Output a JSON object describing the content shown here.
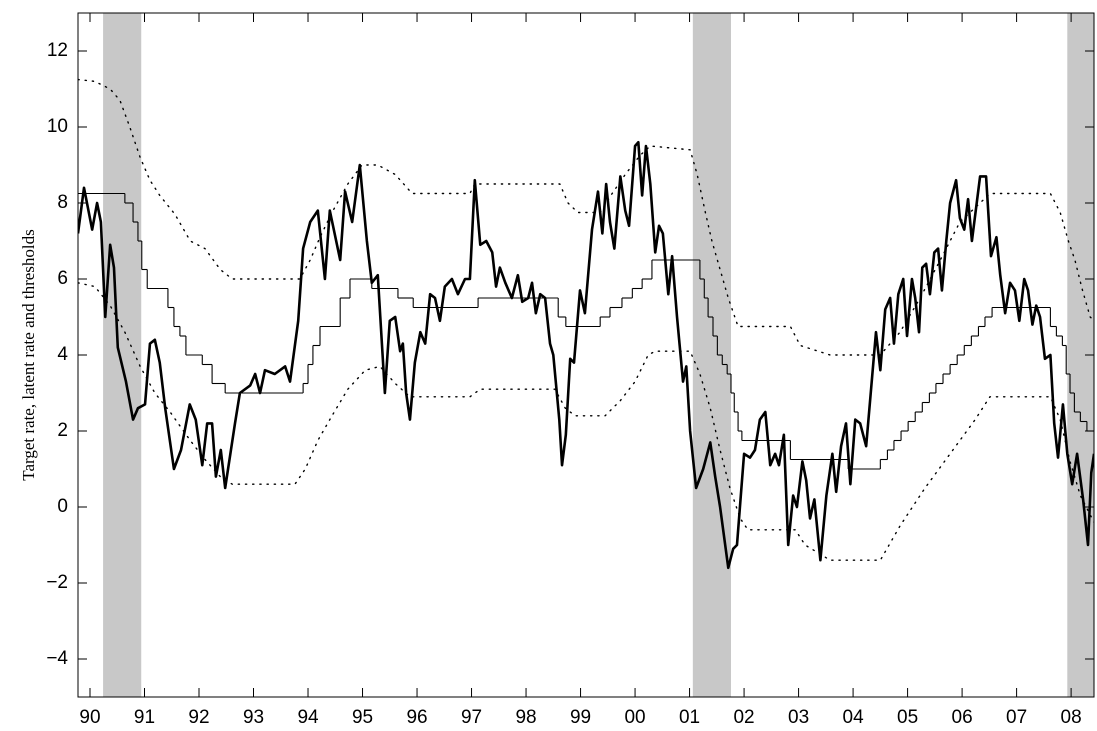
{
  "chart_data": {
    "type": "line",
    "ylabel": "Target rate, latent rate and thresholds",
    "xlim": [
      1989.78,
      2008.42
    ],
    "ylim": [
      -5,
      13
    ],
    "xticks": [
      {
        "value": 1990,
        "label": "90"
      },
      {
        "value": 1991,
        "label": "91"
      },
      {
        "value": 1992,
        "label": "92"
      },
      {
        "value": 1993,
        "label": "93"
      },
      {
        "value": 1994,
        "label": "94"
      },
      {
        "value": 1995,
        "label": "95"
      },
      {
        "value": 1996,
        "label": "96"
      },
      {
        "value": 1997,
        "label": "97"
      },
      {
        "value": 1998,
        "label": "98"
      },
      {
        "value": 1999,
        "label": "99"
      },
      {
        "value": 2000,
        "label": "00"
      },
      {
        "value": 2001,
        "label": "01"
      },
      {
        "value": 2002,
        "label": "02"
      },
      {
        "value": 2003,
        "label": "03"
      },
      {
        "value": 2004,
        "label": "04"
      },
      {
        "value": 2005,
        "label": "05"
      },
      {
        "value": 2006,
        "label": "06"
      },
      {
        "value": 2007,
        "label": "07"
      },
      {
        "value": 2008,
        "label": "08"
      }
    ],
    "yticks": [
      {
        "value": -4,
        "label": "−4"
      },
      {
        "value": -2,
        "label": "−2"
      },
      0,
      2,
      4,
      6,
      8,
      10,
      12
    ],
    "grid": false,
    "shaded_periods": [
      [
        1990.24,
        1990.94
      ],
      [
        2001.06,
        2001.76
      ],
      [
        2007.93,
        2008.42
      ]
    ],
    "shade_color": "#c8c8c8",
    "series": [
      {
        "color": "#000000",
        "line_width": 2.6,
        "dash": "none",
        "step": false,
        "x": [
          1989.78,
          1989.89,
          1990.04,
          1990.13,
          1990.2,
          1990.28,
          1990.37,
          1990.44,
          1990.51,
          1990.66,
          1990.79,
          1990.88,
          1991.01,
          1991.1,
          1991.19,
          1991.28,
          1991.38,
          1991.54,
          1991.67,
          1991.83,
          1991.94,
          1992.06,
          1992.15,
          1992.24,
          1992.31,
          1992.4,
          1992.48,
          1992.66,
          1992.75,
          1992.94,
          1993.03,
          1993.12,
          1993.21,
          1993.39,
          1993.58,
          1993.67,
          1993.82,
          1993.91,
          1994.04,
          1994.18,
          1994.31,
          1994.4,
          1994.59,
          1994.68,
          1994.81,
          1994.95,
          1995.08,
          1995.17,
          1995.28,
          1995.41,
          1995.5,
          1995.6,
          1995.69,
          1995.74,
          1995.8,
          1995.87,
          1995.96,
          1996.06,
          1996.15,
          1996.24,
          1996.33,
          1996.42,
          1996.51,
          1996.64,
          1996.75,
          1996.88,
          1996.97,
          1997.06,
          1997.16,
          1997.27,
          1997.38,
          1997.45,
          1997.52,
          1997.62,
          1997.74,
          1997.85,
          1997.93,
          1998.04,
          1998.11,
          1998.18,
          1998.26,
          1998.35,
          1998.44,
          1998.5,
          1998.61,
          1998.66,
          1998.73,
          1998.81,
          1998.88,
          1998.99,
          1999.08,
          1999.21,
          1999.32,
          1999.4,
          1999.47,
          1999.54,
          1999.62,
          1999.73,
          1999.82,
          1999.89,
          2000.0,
          2000.06,
          2000.13,
          2000.2,
          2000.28,
          2000.37,
          2000.44,
          2000.51,
          2000.61,
          2000.68,
          2000.77,
          2000.88,
          2000.94,
          2001.01,
          2001.12,
          2001.25,
          2001.38,
          2001.47,
          2001.56,
          2001.71,
          2001.8,
          2001.87,
          2002.0,
          2002.11,
          2002.2,
          2002.29,
          2002.39,
          2002.48,
          2002.57,
          2002.64,
          2002.73,
          2002.81,
          2002.9,
          2002.97,
          2003.07,
          2003.14,
          2003.21,
          2003.29,
          2003.4,
          2003.51,
          2003.62,
          2003.69,
          2003.78,
          2003.87,
          2003.95,
          2004.04,
          2004.13,
          2004.24,
          2004.33,
          2004.42,
          2004.5,
          2004.59,
          2004.68,
          2004.75,
          2004.83,
          2004.92,
          2004.99,
          2005.08,
          2005.14,
          2005.21,
          2005.27,
          2005.34,
          2005.41,
          2005.49,
          2005.56,
          2005.63,
          2005.71,
          2005.78,
          2005.89,
          2005.96,
          2006.04,
          2006.11,
          2006.18,
          2006.33,
          2006.44,
          2006.53,
          2006.63,
          2006.7,
          2006.79,
          2006.88,
          2006.97,
          2007.05,
          2007.14,
          2007.21,
          2007.29,
          2007.36,
          2007.43,
          2007.52,
          2007.62,
          2007.69,
          2007.76,
          2007.85,
          2007.93,
          2008.02,
          2008.11,
          2008.22,
          2008.31,
          2008.37,
          2008.42
        ],
        "values": [
          7.2,
          8.4,
          7.3,
          8.0,
          7.5,
          5.0,
          6.9,
          6.3,
          4.2,
          3.3,
          2.3,
          2.6,
          2.7,
          4.3,
          4.4,
          3.8,
          2.6,
          1.0,
          1.5,
          2.7,
          2.3,
          1.1,
          2.2,
          2.2,
          0.8,
          1.5,
          0.5,
          2.2,
          3.0,
          3.2,
          3.5,
          3.0,
          3.6,
          3.5,
          3.7,
          3.3,
          4.9,
          6.8,
          7.5,
          7.8,
          6.0,
          7.8,
          6.5,
          8.3,
          7.5,
          9.0,
          7.0,
          5.9,
          6.1,
          3.0,
          4.9,
          5.0,
          4.1,
          4.3,
          3.0,
          2.3,
          3.8,
          4.6,
          4.3,
          5.6,
          5.5,
          4.9,
          5.8,
          6.0,
          5.6,
          6.0,
          6.0,
          8.6,
          6.9,
          7.0,
          6.7,
          5.8,
          6.3,
          5.9,
          5.5,
          6.1,
          5.4,
          5.5,
          5.9,
          5.1,
          5.6,
          5.5,
          4.3,
          4.0,
          2.3,
          1.1,
          1.9,
          3.9,
          3.8,
          5.7,
          5.1,
          7.3,
          8.3,
          7.2,
          8.5,
          7.5,
          6.8,
          8.7,
          7.8,
          7.4,
          9.5,
          9.6,
          8.2,
          9.5,
          8.5,
          6.7,
          7.4,
          7.2,
          5.6,
          6.6,
          5.0,
          3.3,
          3.7,
          2.0,
          0.5,
          1.0,
          1.7,
          0.8,
          0.0,
          -1.6,
          -1.1,
          -1.0,
          1.4,
          1.3,
          1.5,
          2.3,
          2.5,
          1.1,
          1.4,
          1.1,
          1.9,
          -1.0,
          0.3,
          0.0,
          1.2,
          0.7,
          -0.3,
          0.2,
          -1.4,
          0.3,
          1.4,
          0.4,
          1.6,
          2.2,
          0.6,
          2.3,
          2.2,
          1.6,
          3.1,
          4.6,
          3.6,
          5.2,
          5.5,
          4.3,
          5.6,
          6.0,
          4.5,
          6.0,
          5.5,
          4.6,
          6.3,
          6.4,
          5.6,
          6.7,
          6.8,
          5.7,
          7.0,
          8.0,
          8.6,
          7.6,
          7.3,
          8.1,
          7.0,
          8.7,
          8.7,
          6.6,
          7.1,
          6.1,
          5.1,
          5.9,
          5.7,
          4.9,
          6.0,
          5.7,
          4.8,
          5.3,
          5.0,
          3.9,
          4.0,
          2.2,
          1.3,
          2.7,
          1.4,
          0.6,
          1.4,
          0.2,
          -1.0,
          0.9,
          1.4
        ]
      },
      {
        "color": "#000000",
        "line_width": 1.1,
        "dash": "none",
        "step": true,
        "x": [
          1989.78,
          1990.64,
          1990.79,
          1990.88,
          1990.95,
          1991.05,
          1991.43,
          1991.54,
          1991.65,
          1991.76,
          1992.06,
          1992.24,
          1992.48,
          1993.91,
          1994.0,
          1994.09,
          1994.22,
          1994.59,
          1994.77,
          1995.17,
          1995.65,
          1995.93,
          1997.12,
          1998.59,
          1998.73,
          1999.36,
          1999.54,
          1999.76,
          1999.95,
          2000.13,
          2000.31,
          2001.19,
          2001.27,
          2001.34,
          2001.43,
          2001.51,
          2001.6,
          2001.69,
          2001.76,
          2001.82,
          2001.89,
          2001.96,
          2002.85,
          2003.91,
          2004.5,
          2004.63,
          2004.75,
          2004.88,
          2005.01,
          2005.14,
          2005.27,
          2005.4,
          2005.52,
          2005.65,
          2005.78,
          2005.91,
          2006.04,
          2006.17,
          2006.3,
          2006.42,
          2006.55,
          2007.62,
          2007.73,
          2007.84,
          2007.91,
          2007.98,
          2008.06,
          2008.17,
          2008.29
        ],
        "values": [
          8.25,
          8.0,
          7.5,
          7.0,
          6.25,
          5.75,
          5.25,
          4.75,
          4.5,
          4.0,
          3.75,
          3.25,
          3.0,
          3.25,
          3.75,
          4.25,
          4.75,
          5.5,
          6.0,
          5.75,
          5.5,
          5.25,
          5.5,
          5.0,
          4.75,
          5.0,
          5.25,
          5.5,
          5.75,
          6.0,
          6.5,
          6.0,
          5.5,
          5.0,
          4.5,
          4.0,
          3.75,
          3.5,
          3.0,
          2.5,
          2.0,
          1.75,
          1.25,
          1.0,
          1.25,
          1.5,
          1.75,
          2.0,
          2.25,
          2.5,
          2.75,
          3.0,
          3.25,
          3.5,
          3.75,
          4.0,
          4.25,
          4.5,
          4.75,
          5.0,
          5.25,
          4.75,
          4.5,
          4.25,
          3.5,
          3.0,
          2.5,
          2.25,
          2.0
        ]
      },
      {
        "color": "#000000",
        "line_width": 1.4,
        "dash": "1.2 6",
        "step": false,
        "x": [
          1989.78,
          1990.09,
          1990.37,
          1990.55,
          1990.73,
          1990.92,
          1991.1,
          1991.28,
          1991.56,
          1991.84,
          1992.11,
          1992.39,
          1992.61,
          1993.85,
          1994.04,
          1994.22,
          1994.44,
          1994.73,
          1994.99,
          1995.28,
          1995.6,
          1995.91,
          1996.97,
          1997.06,
          1998.62,
          1998.77,
          1998.95,
          1999.36,
          1999.58,
          1999.82,
          2000.09,
          2000.28,
          2001.01,
          2001.14,
          2001.29,
          2001.41,
          2001.56,
          2001.71,
          2001.89,
          2002.85,
          2003.03,
          2003.58,
          2004.5,
          2004.86,
          2005.23,
          2005.6,
          2005.96,
          2006.33,
          2006.51,
          2007.62,
          2007.8,
          2007.95,
          2008.07,
          2008.2,
          2008.35,
          2008.42
        ],
        "values": [
          11.25,
          11.2,
          11.0,
          10.7,
          10.0,
          9.2,
          8.6,
          8.2,
          7.7,
          7.0,
          6.8,
          6.25,
          6.0,
          6.0,
          6.5,
          7.1,
          7.75,
          8.5,
          9.0,
          9.0,
          8.75,
          8.25,
          8.25,
          8.5,
          8.5,
          8.0,
          7.75,
          7.75,
          8.25,
          8.75,
          9.25,
          9.5,
          9.4,
          8.75,
          7.75,
          7.0,
          6.25,
          5.5,
          4.75,
          4.75,
          4.25,
          4.0,
          4.0,
          4.6,
          5.5,
          6.5,
          7.5,
          8.0,
          8.25,
          8.25,
          7.75,
          7.0,
          6.5,
          5.75,
          5.0,
          4.9
        ]
      },
      {
        "color": "#000000",
        "line_width": 1.4,
        "dash": "1.2 6",
        "step": false,
        "x": [
          1989.78,
          1990.09,
          1990.37,
          1990.64,
          1990.92,
          1991.19,
          1991.47,
          1991.84,
          1992.11,
          1992.39,
          1992.61,
          1993.76,
          1993.95,
          1994.18,
          1994.44,
          1994.73,
          1995.05,
          1995.32,
          1995.6,
          1995.87,
          1996.97,
          1997.16,
          1998.53,
          1998.72,
          1998.9,
          1999.45,
          1999.73,
          2000.0,
          2000.24,
          2000.37,
          2001.01,
          2001.19,
          2001.38,
          2001.56,
          2001.74,
          2001.93,
          2002.07,
          2002.94,
          2003.12,
          2003.58,
          2004.5,
          2004.86,
          2005.32,
          2005.78,
          2006.24,
          2006.51,
          2007.62,
          2007.8,
          2007.98,
          2008.17,
          2008.42
        ],
        "values": [
          5.9,
          5.8,
          5.3,
          4.6,
          3.7,
          3.0,
          2.5,
          1.75,
          1.25,
          0.8,
          0.6,
          0.6,
          1.0,
          1.75,
          2.4,
          3.1,
          3.6,
          3.7,
          3.25,
          2.9,
          2.9,
          3.1,
          3.1,
          2.6,
          2.4,
          2.4,
          2.8,
          3.3,
          4.0,
          4.1,
          4.1,
          3.5,
          2.6,
          1.5,
          0.5,
          -0.3,
          -0.6,
          -0.6,
          -1.0,
          -1.4,
          -1.4,
          -0.5,
          0.5,
          1.4,
          2.3,
          2.9,
          2.9,
          2.3,
          1.2,
          0.3,
          -0.4
        ]
      }
    ]
  }
}
